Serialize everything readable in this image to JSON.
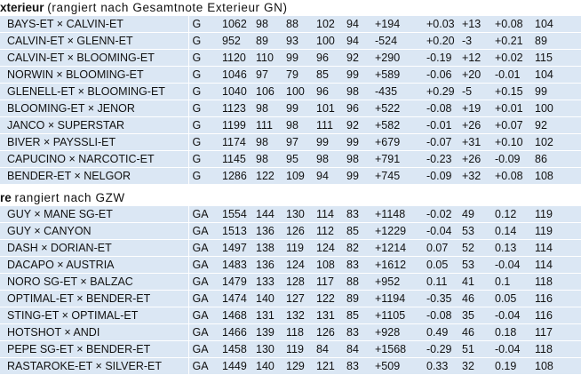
{
  "sections": [
    {
      "title_bold": "xterieur",
      "title_rest": "(rangiert nach Gesamtnote Exterieur GN)",
      "rows": [
        [
          "BAYS-ET × CALVIN-ET",
          "G",
          "1062",
          "98",
          "88",
          "102",
          "94",
          "+194",
          "+0.03",
          "+13",
          "+0.08",
          "104"
        ],
        [
          "CALVIN-ET × GLENN-ET",
          "G",
          "952",
          "89",
          "93",
          "100",
          "94",
          "-524",
          "+0.20",
          "-3",
          "+0.21",
          "89"
        ],
        [
          "CALVIN-ET × BLOOMING-ET",
          "G",
          "1120",
          "110",
          "99",
          "96",
          "92",
          "+290",
          "-0.19",
          "+12",
          "+0.02",
          "115"
        ],
        [
          "NORWIN × BLOOMING-ET",
          "G",
          "1046",
          "97",
          "79",
          "85",
          "99",
          "+589",
          "-0.06",
          "+20",
          "-0.01",
          "104"
        ],
        [
          "GLENELL-ET × BLOOMING-ET",
          "G",
          "1040",
          "106",
          "100",
          "96",
          "98",
          "-435",
          "+0.29",
          "-5",
          "+0.15",
          "99"
        ],
        [
          "BLOOMING-ET × JENOR",
          "G",
          "1123",
          "98",
          "99",
          "101",
          "96",
          "+522",
          "-0.08",
          "+19",
          "+0.01",
          "100"
        ],
        [
          "JANCO × SUPERSTAR",
          "G",
          "1199",
          "111",
          "98",
          "111",
          "92",
          "+582",
          "-0.01",
          "+26",
          "+0.07",
          "92"
        ],
        [
          "BIVER × PAYSSLI-ET",
          "G",
          "1174",
          "98",
          "97",
          "99",
          "99",
          "+679",
          "-0.07",
          "+31",
          "+0.10",
          "102"
        ],
        [
          "CAPUCINO × NARCOTIC-ET",
          "G",
          "1145",
          "98",
          "95",
          "98",
          "98",
          "+791",
          "-0.23",
          "+26",
          "-0.09",
          "86"
        ],
        [
          "BENDER-ET × NELGOR",
          "G",
          "1286",
          "122",
          "109",
          "94",
          "99",
          "+745",
          "-0.09",
          "+32",
          "+0.08",
          "108"
        ]
      ]
    },
    {
      "title_bold": "re",
      "title_rest": "rangiert nach GZW",
      "rows": [
        [
          "GUY × MANE SG-ET",
          "GA",
          "1554",
          "144",
          "130",
          "114",
          "83",
          "+1148",
          "-0.02",
          "49",
          "0.12",
          "119"
        ],
        [
          "GUY × CANYON",
          "GA",
          "1513",
          "136",
          "126",
          "112",
          "85",
          "+1229",
          "-0.04",
          "53",
          "0.14",
          "119"
        ],
        [
          "DASH × DORIAN-ET",
          "GA",
          "1497",
          "138",
          "119",
          "124",
          "82",
          "+1214",
          "0.07",
          "52",
          "0.13",
          "114"
        ],
        [
          "DACAPO × AUSTRIA",
          "GA",
          "1483",
          "136",
          "124",
          "108",
          "83",
          "+1612",
          "0.05",
          "53",
          "-0.04",
          "114"
        ],
        [
          "NORO SG-ET × BALZAC",
          "GA",
          "1479",
          "133",
          "128",
          "117",
          "88",
          "+952",
          "0.11",
          "41",
          "0.1",
          "118"
        ],
        [
          "OPTIMAL-ET × BENDER-ET",
          "GA",
          "1474",
          "140",
          "127",
          "122",
          "89",
          "+1194",
          "-0.35",
          "46",
          "0.05",
          "116"
        ],
        [
          "STING-ET × OPTIMAL-ET",
          "GA",
          "1468",
          "131",
          "132",
          "131",
          "85",
          "+1105",
          "-0.08",
          "35",
          "-0.04",
          "116"
        ],
        [
          "HOTSHOT × ANDI",
          "GA",
          "1466",
          "139",
          "118",
          "126",
          "83",
          "+928",
          "0.49",
          "46",
          "0.18",
          "117"
        ],
        [
          "PEPE SG-ET × BENDER-ET",
          "GA",
          "1458",
          "130",
          "119",
          "84",
          "84",
          "+1568",
          "-0.29",
          "51",
          "-0.04",
          "118"
        ],
        [
          "RASTAROKE-ET × SILVER-ET",
          "GA",
          "1449",
          "140",
          "129",
          "121",
          "83",
          "+509",
          "0.33",
          "32",
          "0.19",
          "108"
        ]
      ]
    }
  ]
}
